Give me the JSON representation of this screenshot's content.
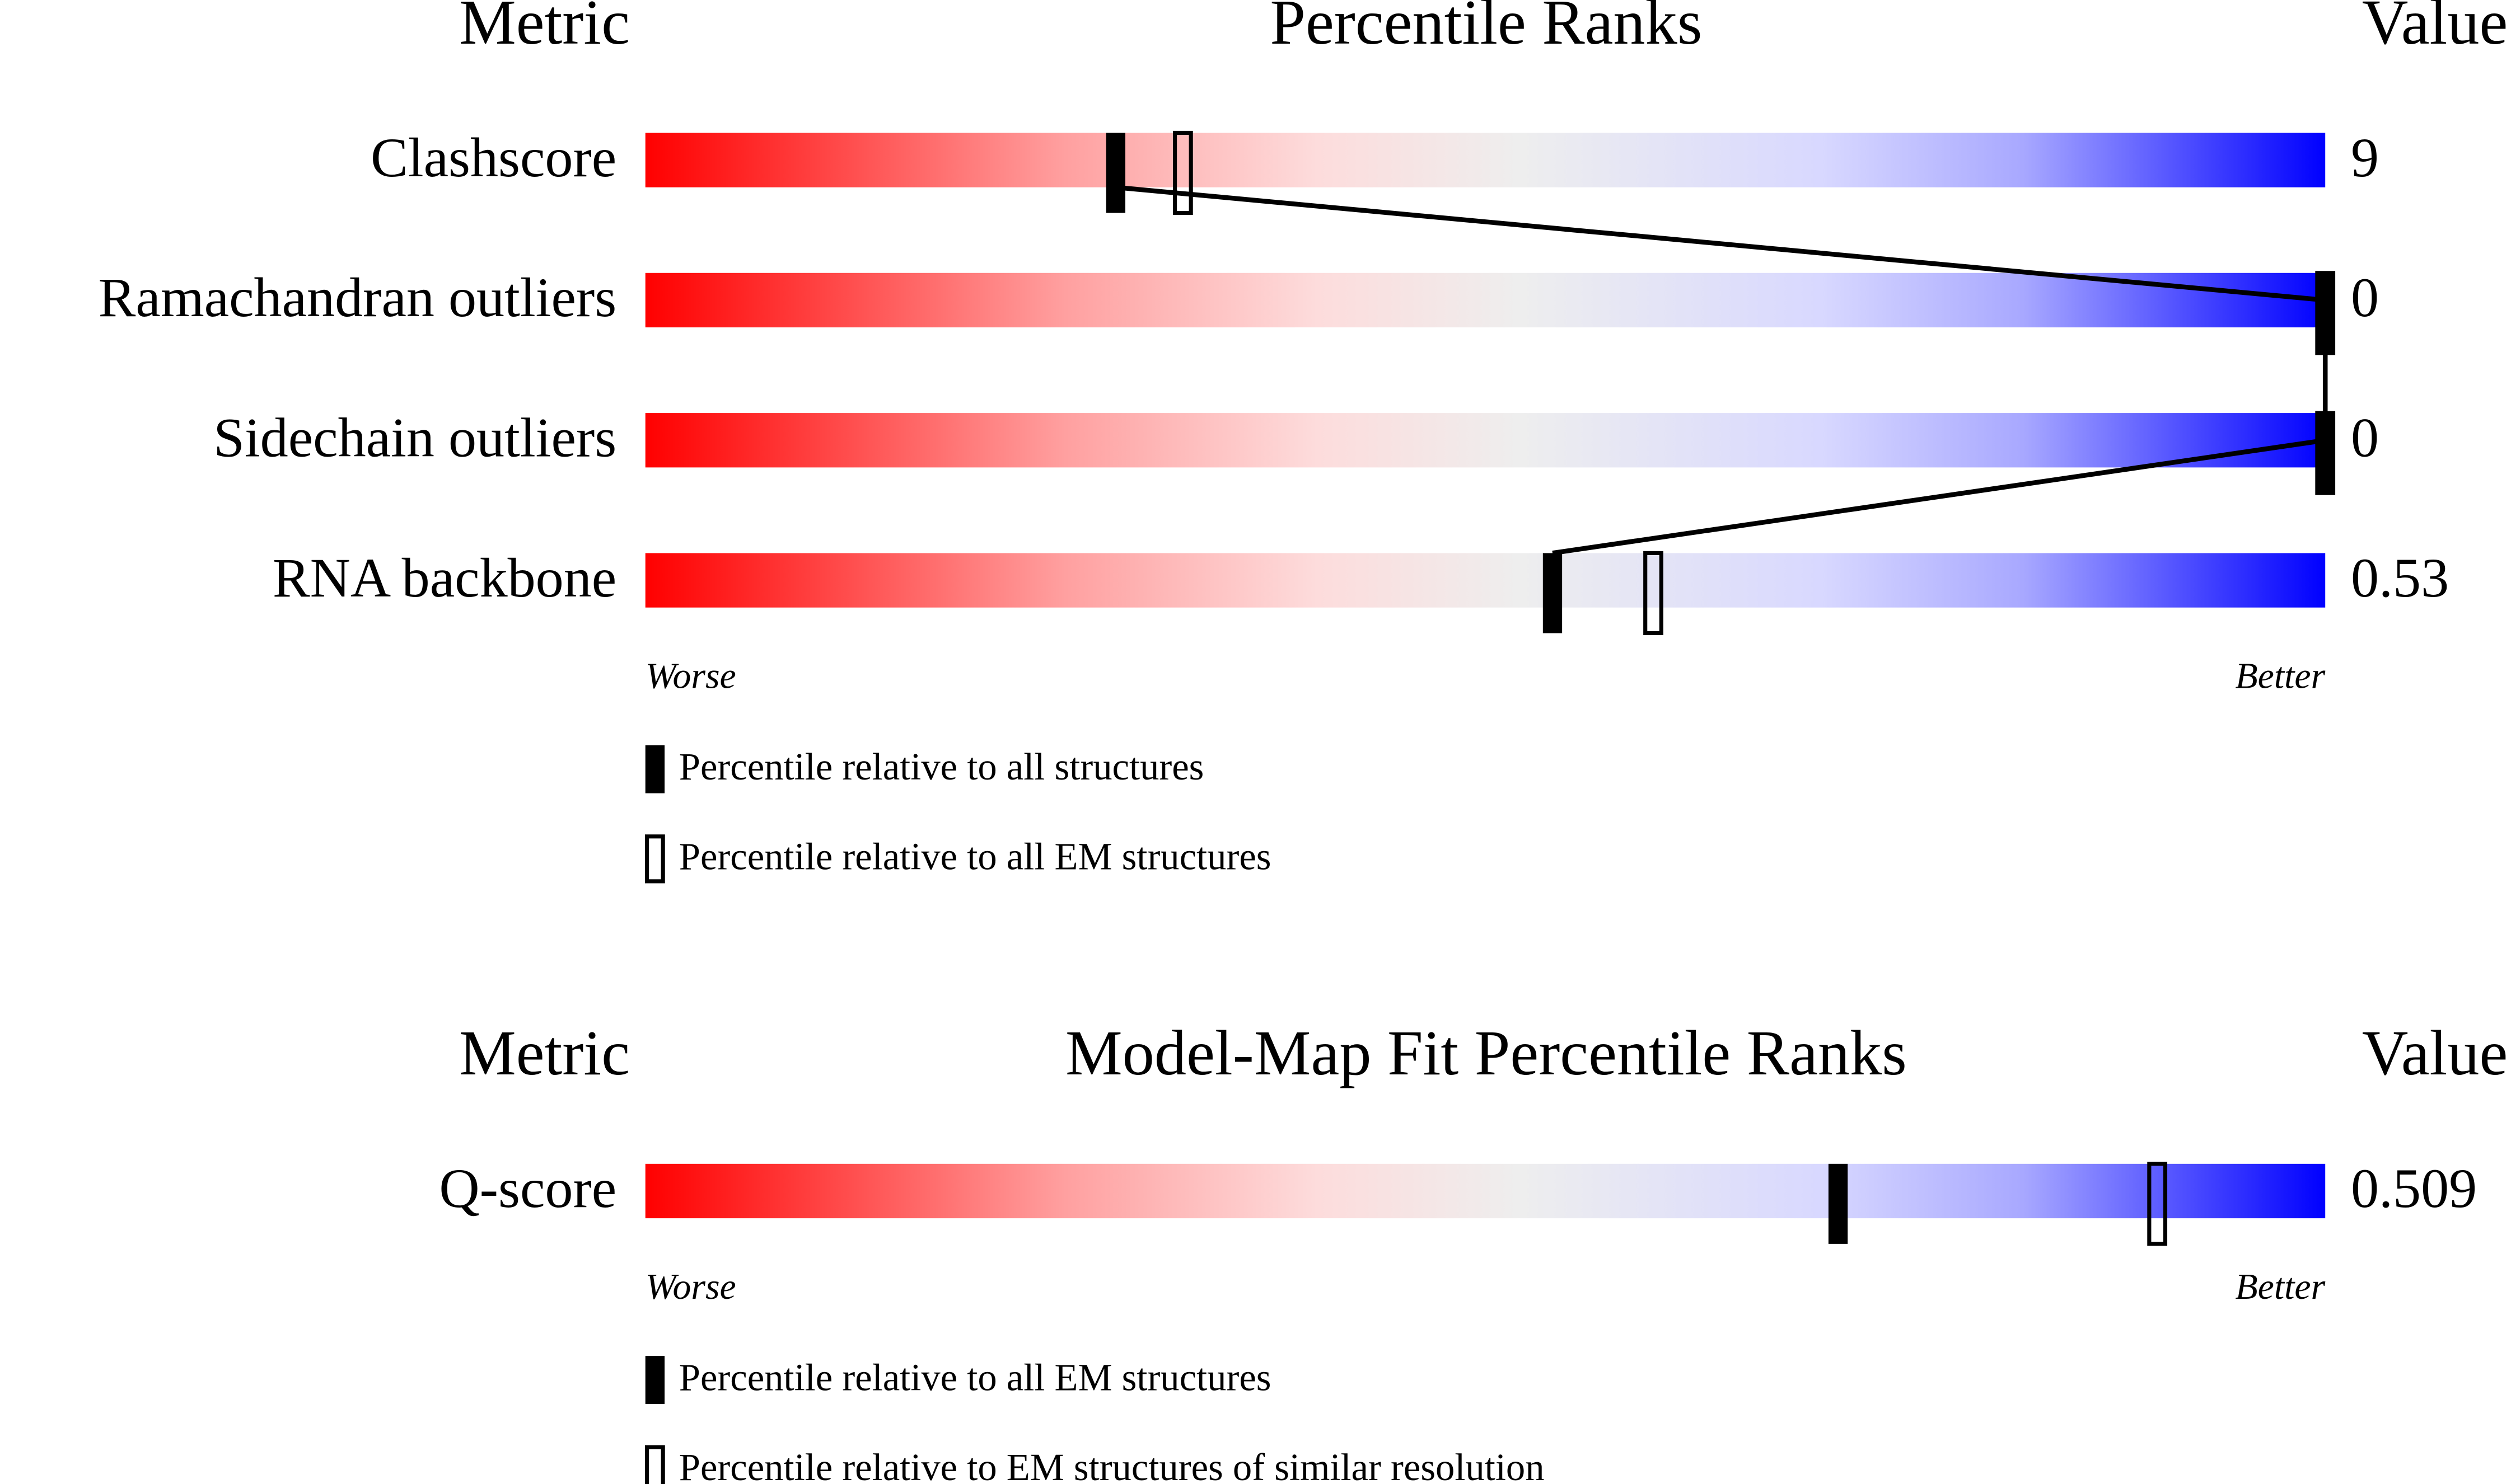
{
  "chart_data": [
    {
      "type": "percentile",
      "headers": {
        "metric": "Metric",
        "title": "Percentile Ranks",
        "value": "Value"
      },
      "categories": [
        "Clashscore",
        "Ramachandran outliers",
        "Sidechain outliers",
        "RNA backbone"
      ],
      "metric_values": [
        9,
        0,
        0,
        0.53
      ],
      "xlim": [
        0,
        100
      ],
      "low_label": "Worse",
      "high_label": "Better",
      "connect": true,
      "series": [
        {
          "name": "Percentile relative to all structures",
          "style": "filled",
          "color": "#000000",
          "values": [
            28,
            100,
            100,
            54
          ]
        },
        {
          "name": "Percentile relative to all EM structures",
          "style": "open",
          "color": "#000000",
          "values": [
            32,
            100,
            100,
            60
          ]
        }
      ]
    },
    {
      "type": "percentile",
      "headers": {
        "metric": "Metric",
        "title": "Model-Map Fit Percentile Ranks",
        "value": "Value"
      },
      "categories": [
        "Q-score"
      ],
      "metric_values": [
        0.509
      ],
      "xlim": [
        0,
        100
      ],
      "low_label": "Worse",
      "high_label": "Better",
      "connect": false,
      "series": [
        {
          "name": "Percentile relative to all EM structures",
          "style": "filled",
          "color": "#000000",
          "values": [
            71
          ]
        },
        {
          "name": "Percentile relative to EM structures of similar resolution",
          "style": "open",
          "color": "#000000",
          "values": [
            90
          ]
        }
      ]
    }
  ]
}
